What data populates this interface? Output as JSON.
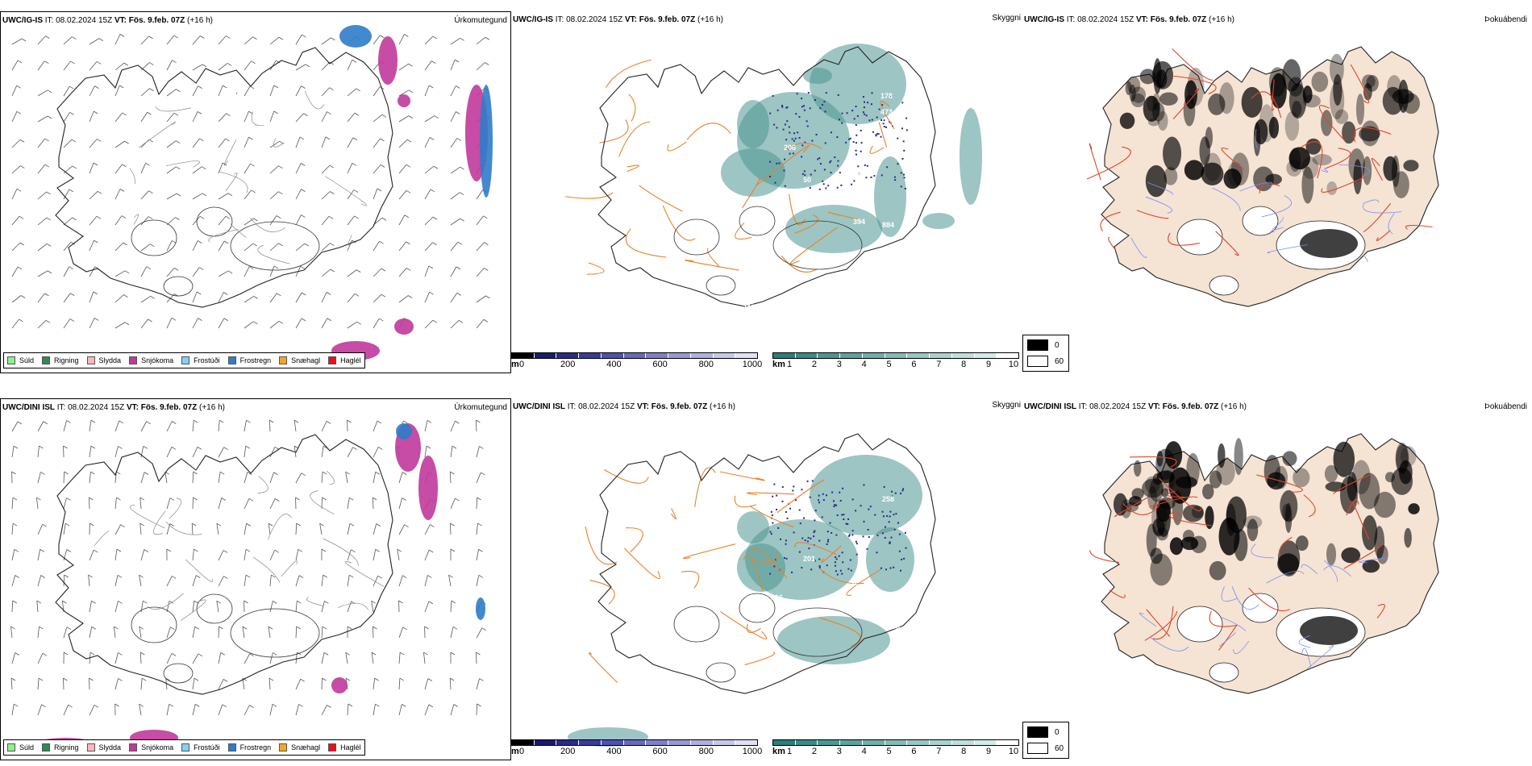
{
  "rows": [
    {
      "model": "UWC/IG-IS",
      "it_label": "IT:",
      "it_value": "08.02.2024 15Z",
      "vt_label": "VT:",
      "vt_value": "Fös. 9.feb. 07Z",
      "lead": "(+16 h)",
      "cloud_labels": [
        "937",
        "178",
        "473",
        "206",
        "60",
        "422",
        "266",
        "192",
        "394",
        "884",
        "119"
      ]
    },
    {
      "model": "UWC/DINI ISL",
      "it_label": "IT:",
      "it_value": "08.02.2024 15Z",
      "vt_label": "VT:",
      "vt_value": "Fös. 9.feb. 07Z",
      "lead": "(+16 h)",
      "cloud_labels": [
        "201",
        "52",
        "258",
        "858",
        "316",
        "83",
        "372"
      ]
    }
  ],
  "panels": {
    "precip": {
      "corner": "Úrkomutegund"
    },
    "cloud": {
      "corner": "Skyggni"
    },
    "fog": {
      "corner": "Þokuábendi"
    }
  },
  "precip_legend": [
    {
      "label": "Súld",
      "color": "#90ee90"
    },
    {
      "label": "Rigning",
      "color": "#2e8b57"
    },
    {
      "label": "Slydda",
      "color": "#ffb6c1"
    },
    {
      "label": "Snjókoma",
      "color": "#c0399b"
    },
    {
      "label": "Frostúði",
      "color": "#87cefa"
    },
    {
      "label": "Frostregn",
      "color": "#2f7cc9"
    },
    {
      "label": "Snæhagl",
      "color": "#f5a623"
    },
    {
      "label": "Haglél",
      "color": "#e8101a"
    }
  ],
  "height_bar": {
    "unit": "m",
    "ticks": [
      "0",
      "200",
      "400",
      "600",
      "800",
      "1000"
    ],
    "colors": [
      "#000000",
      "#1a1a6e",
      "#2a2a8c",
      "#3a3aa0",
      "#5050b0",
      "#6868bc",
      "#8080c8",
      "#9898d4",
      "#b0b0e0",
      "#c8c8ec",
      "#e0e0f6"
    ]
  },
  "vis_bar": {
    "unit": "km",
    "ticks": [
      "1",
      "2",
      "3",
      "4",
      "5",
      "6",
      "7",
      "8",
      "9",
      "10"
    ],
    "colors": [
      "#2a7d78",
      "#3a8a85",
      "#4d9691",
      "#5fa29d",
      "#72aeaa",
      "#85bab6",
      "#98c6c3",
      "#abd2cf",
      "#bfdedc",
      "#d2eae8",
      "#ffffff"
    ]
  },
  "fog_legend": [
    "0",
    "60"
  ]
}
